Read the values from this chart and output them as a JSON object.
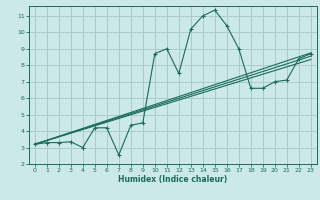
{
  "xlabel": "Humidex (Indice chaleur)",
  "bg_color": "#cce8e8",
  "grid_color": "#aacccc",
  "line_color": "#1a6b5a",
  "xlim": [
    -0.5,
    23.5
  ],
  "ylim": [
    2,
    11.6
  ],
  "xticks": [
    0,
    1,
    2,
    3,
    4,
    5,
    6,
    7,
    8,
    9,
    10,
    11,
    12,
    13,
    14,
    15,
    16,
    17,
    18,
    19,
    20,
    21,
    22,
    23
  ],
  "yticks": [
    2,
    3,
    4,
    5,
    6,
    7,
    8,
    9,
    10,
    11
  ],
  "curve_x": [
    0,
    1,
    2,
    3,
    4,
    5,
    6,
    7,
    8,
    9,
    10,
    11,
    12,
    13,
    14,
    15,
    16,
    17,
    18,
    19,
    20,
    21,
    22,
    23
  ],
  "curve_y": [
    3.2,
    3.3,
    3.3,
    3.35,
    3.0,
    4.2,
    4.2,
    2.55,
    4.35,
    4.5,
    8.7,
    9.0,
    7.5,
    10.2,
    11.0,
    11.35,
    10.4,
    9.0,
    6.6,
    6.6,
    7.0,
    7.1,
    8.4,
    8.7
  ],
  "line1_x": [
    0,
    23
  ],
  "line1_y": [
    3.2,
    8.55
  ],
  "line2_x": [
    0,
    23
  ],
  "line2_y": [
    3.2,
    8.35
  ],
  "line3_x": [
    0,
    23
  ],
  "line3_y": [
    3.2,
    8.75
  ]
}
